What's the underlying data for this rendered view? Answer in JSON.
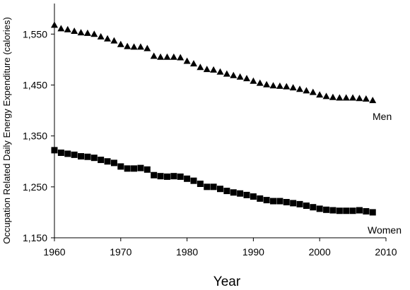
{
  "chart_data": {
    "type": "scatter",
    "xlabel": "Year",
    "ylabel": "Occupation Related Daily Energy Expenditure (calories)",
    "xlim": [
      1960,
      2010
    ],
    "ylim": [
      1150,
      1610
    ],
    "x_ticks": [
      1960,
      1970,
      1980,
      1990,
      2000,
      2010
    ],
    "y_ticks": [
      1150,
      1250,
      1350,
      1450,
      1550
    ],
    "x_tick_labels": [
      "1960",
      "1970",
      "1980",
      "1990",
      "2000",
      "2010"
    ],
    "y_tick_labels": [
      "1,150",
      "1,250",
      "1,350",
      "1,450",
      "1,550"
    ],
    "grid": false,
    "x": [
      1960,
      1961,
      1962,
      1963,
      1964,
      1965,
      1966,
      1967,
      1968,
      1969,
      1970,
      1971,
      1972,
      1973,
      1974,
      1975,
      1976,
      1977,
      1978,
      1979,
      1980,
      1981,
      1982,
      1983,
      1984,
      1985,
      1986,
      1987,
      1988,
      1989,
      1990,
      1991,
      1992,
      1993,
      1994,
      1995,
      1996,
      1997,
      1998,
      1999,
      2000,
      2001,
      2002,
      2003,
      2004,
      2005,
      2006,
      2007,
      2008
    ],
    "series": [
      {
        "name": "Men",
        "marker": "triangle",
        "values": [
          1568,
          1561,
          1559,
          1556,
          1553,
          1552,
          1550,
          1545,
          1541,
          1537,
          1530,
          1526,
          1525,
          1525,
          1522,
          1507,
          1505,
          1505,
          1505,
          1504,
          1497,
          1492,
          1485,
          1481,
          1480,
          1476,
          1472,
          1469,
          1466,
          1463,
          1458,
          1454,
          1451,
          1449,
          1448,
          1447,
          1445,
          1442,
          1439,
          1436,
          1431,
          1428,
          1426,
          1425,
          1425,
          1425,
          1424,
          1423,
          1420
        ]
      },
      {
        "name": "Women",
        "marker": "square",
        "values": [
          1322,
          1317,
          1315,
          1313,
          1310,
          1309,
          1307,
          1303,
          1300,
          1297,
          1290,
          1286,
          1286,
          1287,
          1284,
          1273,
          1271,
          1270,
          1271,
          1270,
          1266,
          1262,
          1256,
          1250,
          1250,
          1246,
          1242,
          1239,
          1237,
          1234,
          1231,
          1227,
          1224,
          1222,
          1222,
          1220,
          1218,
          1216,
          1213,
          1210,
          1207,
          1205,
          1204,
          1203,
          1203,
          1203,
          1204,
          1202,
          1200
        ]
      }
    ]
  }
}
